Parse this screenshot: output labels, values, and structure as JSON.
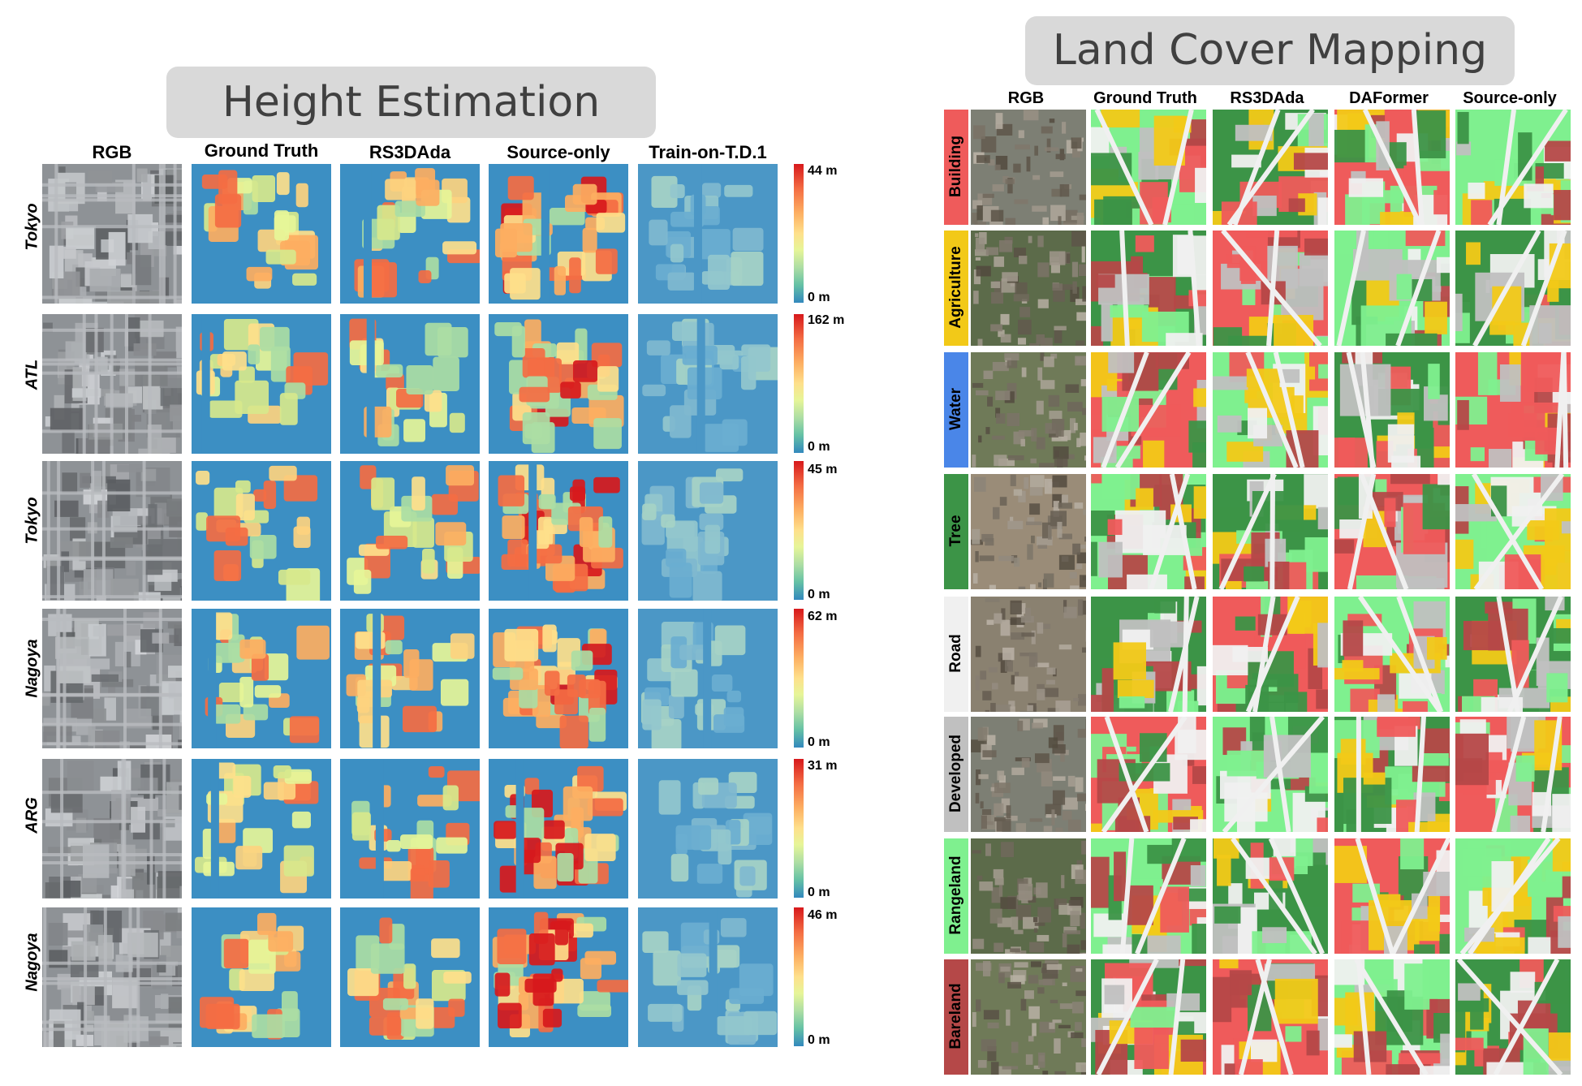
{
  "height_estimation": {
    "title": "Height Estimation",
    "columns": [
      "RGB",
      "Ground Truth",
      "RS3DAda",
      "Source-only",
      "Train-on-T.D.1"
    ],
    "rows": [
      {
        "label": "Tokyo",
        "max": "44 m",
        "min": "0 m"
      },
      {
        "label": "ATL",
        "max": "162 m",
        "min": "0 m"
      },
      {
        "label": "Tokyo",
        "max": "45 m",
        "min": "0 m"
      },
      {
        "label": "Nagoya",
        "max": "62 m",
        "min": "0 m"
      },
      {
        "label": "ARG",
        "max": "31 m",
        "min": "0 m"
      },
      {
        "label": "Nagoya",
        "max": "46 m",
        "min": "0 m"
      }
    ]
  },
  "land_cover": {
    "title": "Land Cover Mapping",
    "columns": [
      "RGB",
      "Ground Truth",
      "RS3DAda",
      "DAFormer",
      "Source-only"
    ],
    "classes": [
      {
        "label": "Building",
        "color": "#ef5b5b"
      },
      {
        "label": "Agriculture",
        "color": "#f2c918"
      },
      {
        "label": "Water",
        "color": "#4a86e8"
      },
      {
        "label": "Tree",
        "color": "#3c9447"
      },
      {
        "label": "Road",
        "color": "#f0f0f0"
      },
      {
        "label": "Developed",
        "color": "#c0c0c0"
      },
      {
        "label": "Rangeland",
        "color": "#7ff08f"
      },
      {
        "label": "Bareland",
        "color": "#b54848"
      }
    ]
  },
  "colors": {
    "title_bg": "#d9d9d9",
    "height_low": "#3288bd",
    "height_high": "#d7191c"
  }
}
